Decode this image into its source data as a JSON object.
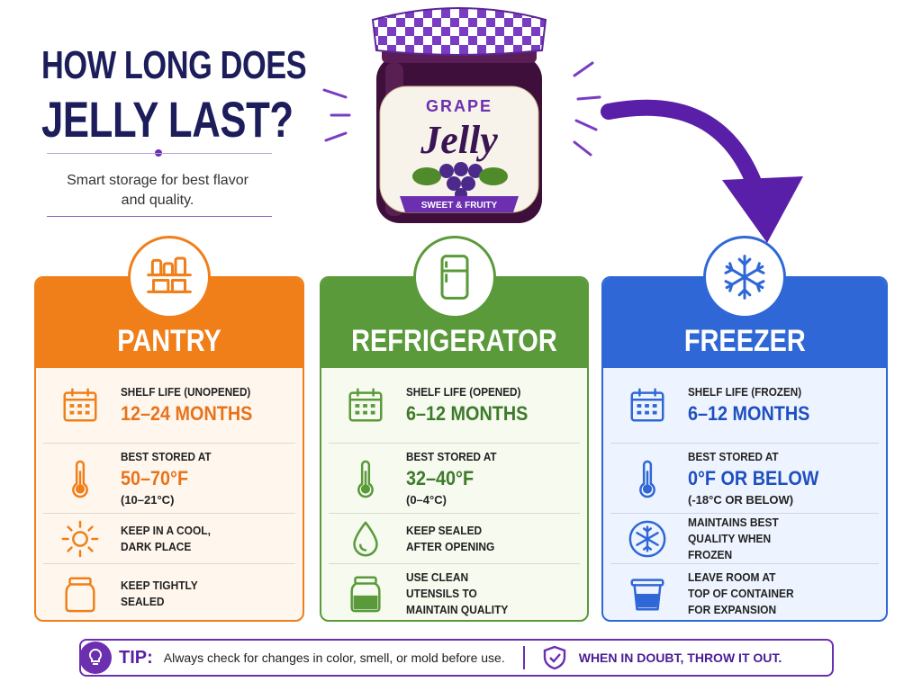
{
  "header": {
    "title_line1": "HOW LONG DOES",
    "title_line2": "JELLY LAST?",
    "subtitle": "Smart storage for best flavor and quality."
  },
  "jar": {
    "top": "GRAPE",
    "name": "Jelly",
    "ribbon": "SWEET & FRUITY"
  },
  "columns": [
    {
      "title": "PANTRY",
      "rows": [
        {
          "label": "SHELF LIFE (UNOPENED)",
          "value": "12–24 MONTHS"
        },
        {
          "label": "BEST STORED AT",
          "value": "50–70°F",
          "sub": "(10–21°C)"
        },
        {
          "text": "KEEP IN A COOL, DARK PLACE"
        },
        {
          "text": "KEEP TIGHTLY SEALED"
        }
      ]
    },
    {
      "title": "REFRIGERATOR",
      "rows": [
        {
          "label": "SHELF LIFE (OPENED)",
          "value": "6–12 MONTHS"
        },
        {
          "label": "BEST STORED AT",
          "value": "32–40°F",
          "sub": "(0–4°C)"
        },
        {
          "text": "KEEP SEALED AFTER OPENING"
        },
        {
          "text": "USE CLEAN UTENSILS TO MAINTAIN QUALITY"
        }
      ]
    },
    {
      "title": "FREEZER",
      "rows": [
        {
          "label": "SHELF LIFE (FROZEN)",
          "value": "6–12 MONTHS"
        },
        {
          "label": "BEST STORED AT",
          "value": "0°F OR BELOW",
          "sub": "(-18°C OR BELOW)"
        },
        {
          "text": "MAINTAINS BEST QUALITY WHEN FROZEN"
        },
        {
          "text": "LEAVE ROOM AT TOP OF CONTAINER FOR EXPANSION"
        }
      ]
    }
  ],
  "tip": {
    "label": "TIP:",
    "text": "Always check for changes in color, smell, or mold before use.",
    "warning": "WHEN IN DOUBT, THROW IT OUT."
  }
}
